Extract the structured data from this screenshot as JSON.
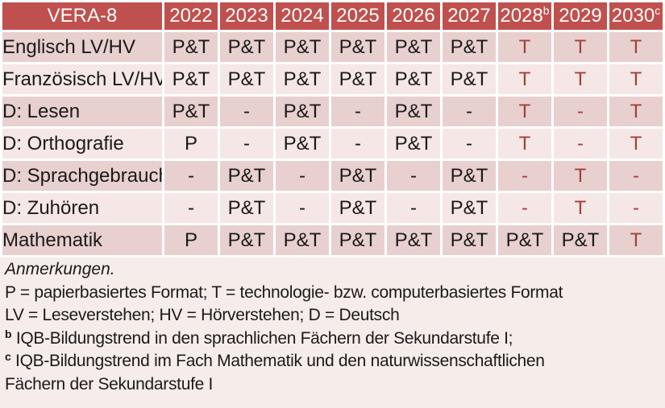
{
  "table": {
    "title": "VERA-8",
    "years": [
      {
        "label": "2022",
        "sup": ""
      },
      {
        "label": "2023",
        "sup": ""
      },
      {
        "label": "2024",
        "sup": ""
      },
      {
        "label": "2025",
        "sup": ""
      },
      {
        "label": "2026",
        "sup": ""
      },
      {
        "label": "2027",
        "sup": ""
      },
      {
        "label": "2028",
        "sup": "b"
      },
      {
        "label": "2029",
        "sup": ""
      },
      {
        "label": "2030",
        "sup": "c"
      }
    ],
    "red_from_col_index": 6,
    "rows": [
      {
        "label": "Englisch LV/HV",
        "values": [
          "P&T",
          "P&T",
          "P&T",
          "P&T",
          "P&T",
          "P&T",
          "T",
          "T",
          "T"
        ]
      },
      {
        "label": "Französisch LV/HV",
        "values": [
          "P&T",
          "P&T",
          "P&T",
          "P&T",
          "P&T",
          "P&T",
          "T",
          "T",
          "T"
        ]
      },
      {
        "label": "D: Lesen",
        "values": [
          "P&T",
          "-",
          "P&T",
          "-",
          "P&T",
          "-",
          "T",
          "-",
          "T"
        ]
      },
      {
        "label": "D: Orthografie",
        "values": [
          "P",
          "-",
          "P&T",
          "-",
          "P&T",
          "-",
          "T",
          "-",
          "T"
        ]
      },
      {
        "label": "D: Sprachgebrauch",
        "values": [
          "-",
          "P&T",
          "-",
          "P&T",
          "-",
          "P&T",
          "-",
          "T",
          "-"
        ]
      },
      {
        "label": "D: Zuhören",
        "values": [
          "-",
          "P&T",
          "-",
          "P&T",
          "-",
          "P&T",
          "-",
          "T",
          "-"
        ]
      },
      {
        "label": "Mathematik",
        "values": [
          "P",
          "P&T",
          "P&T",
          "P&T",
          "P&T",
          "P&T",
          "P&T",
          "P&T",
          "T"
        ]
      }
    ]
  },
  "notes": {
    "heading": "Anmerkungen.",
    "format_legend": "P = papierbasiertes Format; T = technologie- bzw. computerbasiertes Format",
    "abbreviation_legend": "LV = Leseverstehen; HV = Hörverstehen; D = Deutsch",
    "footnote_b": {
      "marker": "b",
      "text": "IQB-Bildungstrend in den sprachlichen Fächern der Sekundarstufe I;"
    },
    "footnote_c": {
      "marker": "c",
      "line1": "IQB-Bildungstrend im Fach Mathematik und den naturwissenschaftlichen",
      "line2": "Fächern der Sekundarstufe I"
    }
  },
  "colors": {
    "header_bg": "#C0504D",
    "header_text": "#FFFFFF",
    "band_dark": "#E8D0CF",
    "band_light": "#F4E7E5",
    "notes_bg": "#F6ECEA",
    "grid": "#FFFFFF",
    "text": "#1A1A1A",
    "red_text": "#A33F3C"
  }
}
